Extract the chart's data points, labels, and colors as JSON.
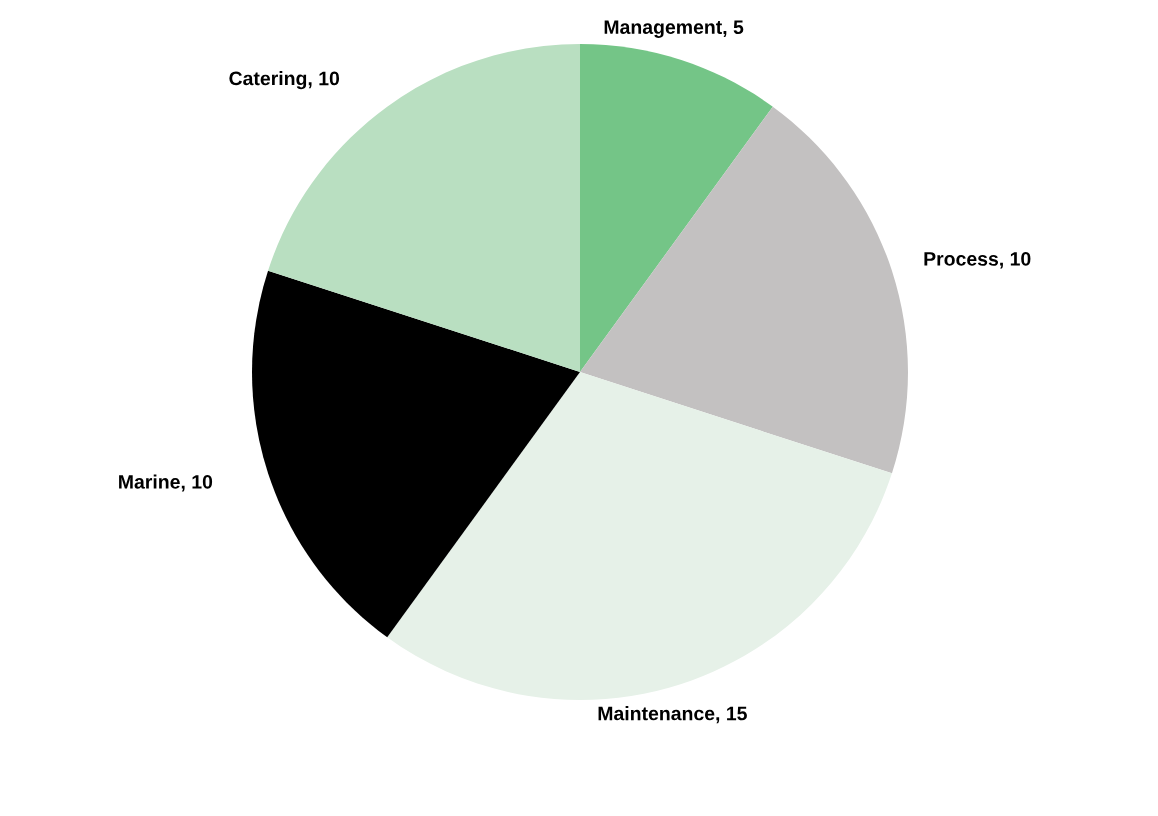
{
  "chart_data": {
    "type": "pie",
    "categories": [
      "Management",
      "Process",
      "Maintenance",
      "Marine",
      "Catering"
    ],
    "values": [
      5,
      10,
      15,
      10,
      10
    ],
    "colors": [
      "#74c587",
      "#c3c1c1",
      "#e6f1e8",
      "#000000",
      "#b9dfc1"
    ],
    "value_labels": [
      ", 5",
      ", 10",
      ", 15",
      ", 10",
      ", 10"
    ]
  }
}
